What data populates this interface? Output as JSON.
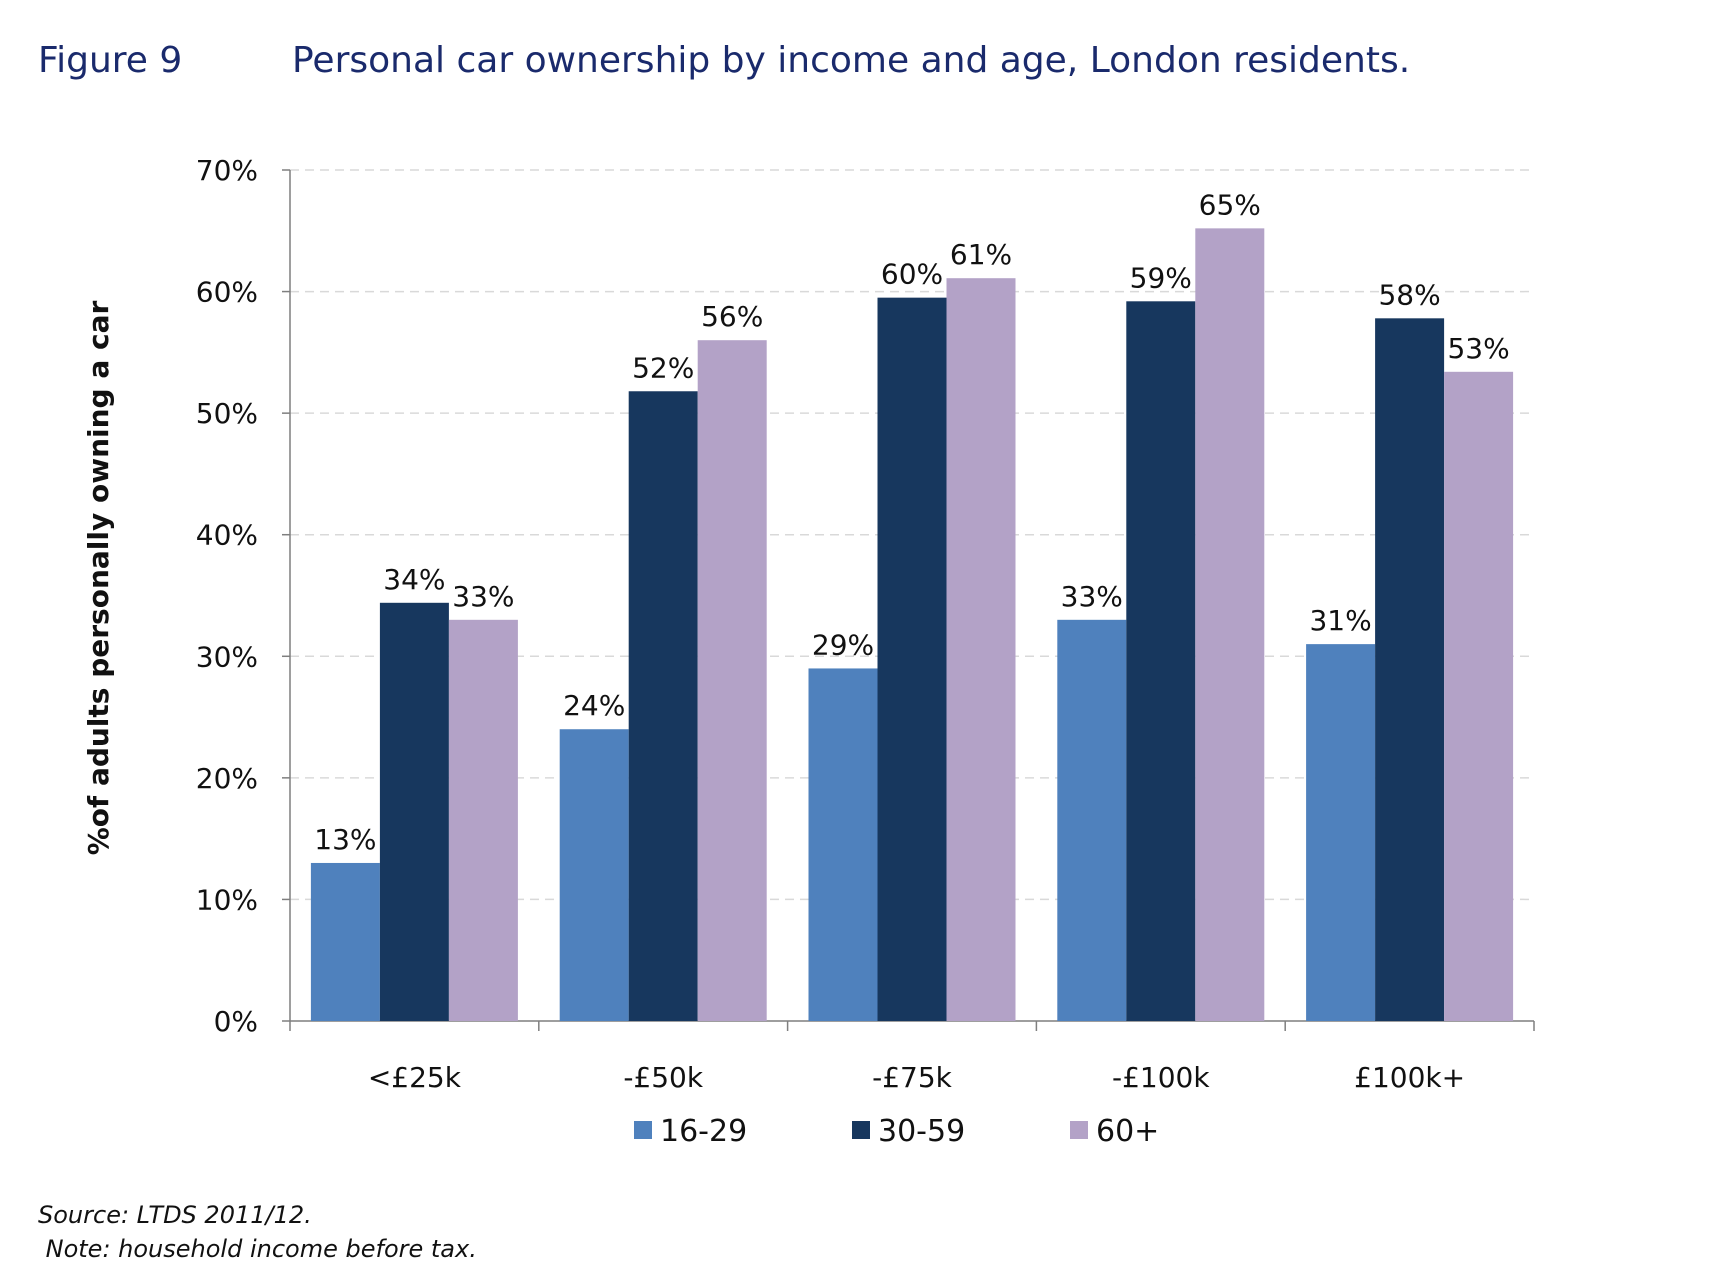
{
  "figure_label": "Figure 9",
  "title": "Personal car ownership by income and age, London residents.",
  "source_note": "Source: LTDS 2011/12.",
  "note": " Note: household income before tax.",
  "chart_data": {
    "type": "bar",
    "categories": [
      "<£25k",
      "-£50k",
      "-£75k",
      "-£100k",
      "£100k+"
    ],
    "series": [
      {
        "name": "16-29",
        "color": "#4f81bd",
        "values": [
          13,
          24,
          29,
          33,
          31
        ],
        "labels": [
          "13%",
          "24%",
          "29%",
          "33%",
          "31%"
        ]
      },
      {
        "name": "30-59",
        "color": "#17375e",
        "values": [
          34.4,
          51.8,
          59.5,
          59.2,
          57.8
        ],
        "labels": [
          "34%",
          "52%",
          "60%",
          "59%",
          "58%"
        ]
      },
      {
        "name": "60+",
        "color": "#b3a2c7",
        "values": [
          33,
          56,
          61.1,
          65.2,
          53.4
        ],
        "labels": [
          "33%",
          "56%",
          "61%",
          "65%",
          "53%"
        ]
      }
    ],
    "ylabel": "%of adults personally owning a car",
    "xlabel": "",
    "ylim": [
      0,
      70
    ],
    "yticks": [
      "0%",
      "10%",
      "20%",
      "30%",
      "40%",
      "50%",
      "60%",
      "70%"
    ],
    "grid": true,
    "legend": "bottom"
  }
}
